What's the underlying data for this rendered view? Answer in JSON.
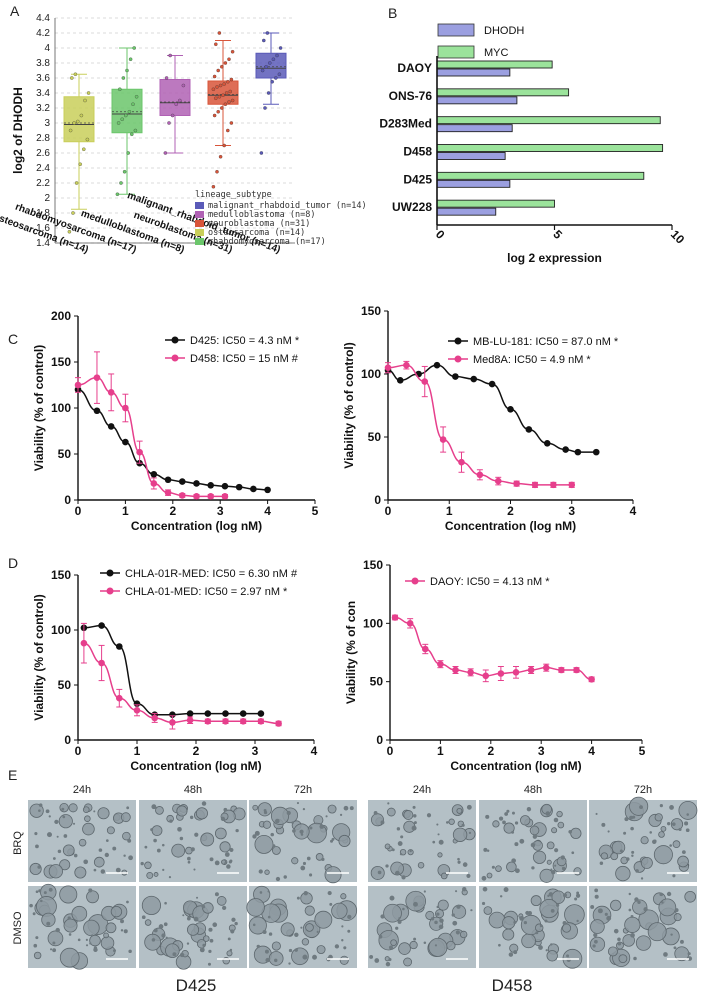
{
  "panels": {
    "A": "A",
    "B": "B",
    "C": "C",
    "D": "D",
    "E": "E"
  },
  "chart_data": [
    {
      "id": "A",
      "type": "box",
      "ylabel": "log2 of DHODH",
      "ylim": [
        1.4,
        4.4
      ],
      "yticks": [
        "1.4",
        "1.6",
        "1.8",
        "2",
        "2.2",
        "2.4",
        "2.6",
        "2.8",
        "3",
        "3.2",
        "3.4",
        "3.6",
        "3.8",
        "4",
        "4.2",
        "4.4"
      ],
      "grid": true,
      "legend_title": "lineage_subtype",
      "legend_position": "bottom-right",
      "categories": [
        "osteosarcoma (n=14)",
        "rhabdomyosarcoma (n=17)",
        "medulloblastoma (n=8)",
        "neuroblastoma (n=31)",
        "malignant_rhabdoid_tumor (n=14)"
      ],
      "boxes": [
        {
          "name": "osteosarcoma (n=14)",
          "color": "#c9cf5a",
          "q1": 2.75,
          "median": 2.98,
          "q3": 3.35,
          "mean": 3.0,
          "low": 1.85,
          "high": 3.65,
          "points": [
            1.55,
            1.8,
            2.2,
            2.45,
            2.65,
            2.78,
            2.9,
            3.0,
            3.02,
            3.1,
            3.3,
            3.4,
            3.6,
            3.65
          ]
        },
        {
          "name": "rhabdomyosarcoma (n=17)",
          "color": "#6bc66b",
          "q1": 2.87,
          "median": 3.12,
          "q3": 3.45,
          "mean": 3.15,
          "low": 2.05,
          "high": 4.0,
          "points": [
            2.05,
            2.2,
            2.35,
            2.6,
            2.85,
            2.9,
            3.0,
            3.05,
            3.1,
            3.15,
            3.25,
            3.35,
            3.45,
            3.6,
            3.7,
            3.85,
            4.0
          ]
        },
        {
          "name": "medulloblastoma (n=8)",
          "color": "#b061b4",
          "q1": 3.1,
          "median": 3.27,
          "q3": 3.58,
          "mean": 3.28,
          "low": 2.6,
          "high": 3.9,
          "points": [
            2.6,
            3.0,
            3.1,
            3.25,
            3.3,
            3.5,
            3.6,
            3.9
          ]
        },
        {
          "name": "neuroblastoma (n=31)",
          "color": "#d8553a",
          "q1": 3.25,
          "median": 3.37,
          "q3": 3.56,
          "mean": 3.38,
          "low": 2.7,
          "high": 4.1,
          "points": [
            2.15,
            2.35,
            2.55,
            2.7,
            2.9,
            3.0,
            3.1,
            3.15,
            3.2,
            3.25,
            3.28,
            3.3,
            3.33,
            3.35,
            3.37,
            3.4,
            3.42,
            3.45,
            3.48,
            3.5,
            3.52,
            3.55,
            3.58,
            3.62,
            3.7,
            3.75,
            3.8,
            3.85,
            3.95,
            4.05,
            4.2
          ]
        },
        {
          "name": "malignant_rhabdoid_tumor (n=14)",
          "color": "#5a5ab8",
          "q1": 3.6,
          "median": 3.73,
          "q3": 3.93,
          "mean": 3.75,
          "low": 3.25,
          "high": 4.2,
          "points": [
            2.6,
            3.2,
            3.4,
            3.55,
            3.6,
            3.65,
            3.7,
            3.75,
            3.8,
            3.85,
            3.9,
            4.0,
            4.1,
            4.2
          ]
        }
      ],
      "legend": [
        {
          "label": "malignant_rhabdoid_tumor (n=14)",
          "color": "#5a5ab8"
        },
        {
          "label": "medulloblastoma (n=8)",
          "color": "#b061b4"
        },
        {
          "label": "neuroblastoma (n=31)",
          "color": "#d8553a"
        },
        {
          "label": "osteosarcoma (n=14)",
          "color": "#c9cf5a"
        },
        {
          "label": "rhabdomyosarcoma (n=17)",
          "color": "#6bc66b"
        }
      ]
    },
    {
      "id": "B",
      "type": "bar",
      "orientation": "horizontal",
      "categories": [
        "DAOY",
        "ONS-76",
        "D283Med",
        "D458",
        "D425",
        "UW228"
      ],
      "xlabel": "log 2 expression",
      "xlim": [
        0,
        10
      ],
      "xticks": [
        "0",
        "5",
        "10"
      ],
      "series": [
        {
          "name": "DHODH",
          "color": "#9b9fe0",
          "values": [
            3.1,
            3.4,
            3.2,
            2.9,
            3.1,
            2.5
          ]
        },
        {
          "name": "MYC",
          "color": "#9be39b",
          "values": [
            4.9,
            5.6,
            9.5,
            9.6,
            8.8,
            5.0
          ]
        }
      ]
    },
    {
      "id": "C1",
      "type": "scatter",
      "ylabel": "Viability (% of control)",
      "xlabel": "Concentration (log nM)",
      "xlim": [
        0,
        5
      ],
      "ylim": [
        0,
        200
      ],
      "xticks": [
        "0",
        "1",
        "2",
        "3",
        "4",
        "5"
      ],
      "yticks": [
        "0",
        "50",
        "100",
        "150",
        "200"
      ],
      "series": [
        {
          "name": "D425: IC50 = 4.3 nM *",
          "color": "#111111",
          "x": [
            0.0,
            0.4,
            0.7,
            1.0,
            1.3,
            1.6,
            1.9,
            2.2,
            2.5,
            2.8,
            3.1,
            3.4,
            3.7,
            4.0
          ],
          "y": [
            120,
            97,
            80,
            63,
            40,
            28,
            22,
            20,
            18,
            16,
            15,
            14,
            12,
            11
          ]
        },
        {
          "name": "D458: IC50 = 15 nM #",
          "color": "#e63f8c",
          "x": [
            0.0,
            0.4,
            0.7,
            1.0,
            1.3,
            1.6,
            1.9,
            2.2,
            2.5,
            2.8,
            3.1
          ],
          "y": [
            125,
            133,
            117,
            100,
            52,
            18,
            8,
            5,
            4,
            4,
            4
          ],
          "err": [
            8,
            28,
            20,
            15,
            12,
            6,
            3,
            2,
            2,
            2,
            2
          ]
        }
      ]
    },
    {
      "id": "C2",
      "type": "scatter",
      "ylabel": "Viability (% of control)",
      "xlabel": "Concentration (log nM)",
      "xlim": [
        0,
        4
      ],
      "ylim": [
        0,
        150
      ],
      "xticks": [
        "0",
        "1",
        "2",
        "3",
        "4"
      ],
      "yticks": [
        "0",
        "50",
        "100",
        "150"
      ],
      "series": [
        {
          "name": "MB-LU-181: IC50 = 87.0 nM *",
          "color": "#111111",
          "x": [
            0.0,
            0.2,
            0.5,
            0.8,
            1.1,
            1.4,
            1.7,
            2.0,
            2.3,
            2.6,
            2.9,
            3.1,
            3.4
          ],
          "y": [
            103,
            95,
            100,
            107,
            98,
            96,
            92,
            72,
            56,
            45,
            40,
            38,
            38
          ]
        },
        {
          "name": "Med8A: IC50 = 4.9 nM *",
          "color": "#e63f8c",
          "x": [
            0.0,
            0.3,
            0.6,
            0.9,
            1.2,
            1.5,
            1.8,
            2.1,
            2.4,
            2.7,
            3.0
          ],
          "y": [
            105,
            107,
            94,
            48,
            30,
            20,
            15,
            13,
            12,
            12,
            12
          ],
          "err": [
            4,
            3,
            12,
            10,
            8,
            4,
            3,
            2,
            2,
            2,
            2
          ]
        }
      ]
    },
    {
      "id": "D1",
      "type": "scatter",
      "ylabel": "Viability (% of control)",
      "xlabel": "Concentration (log nM)",
      "xlim": [
        0,
        4
      ],
      "ylim": [
        0,
        150
      ],
      "xticks": [
        "0",
        "1",
        "2",
        "3",
        "4"
      ],
      "yticks": [
        "0",
        "50",
        "100",
        "150"
      ],
      "series": [
        {
          "name": "CHLA-01R-MED: IC50 = 6.30 nM #",
          "color": "#111111",
          "x": [
            0.1,
            0.4,
            0.7,
            1.0,
            1.3,
            1.6,
            1.9,
            2.2,
            2.5,
            2.8,
            3.1
          ],
          "y": [
            102,
            104,
            85,
            33,
            23,
            23,
            24,
            24,
            24,
            24,
            24
          ]
        },
        {
          "name": "CHLA-01-MED: IC50 = 2.97 nM *",
          "color": "#e63f8c",
          "x": [
            0.1,
            0.4,
            0.7,
            1.0,
            1.3,
            1.6,
            1.9,
            2.2,
            2.5,
            2.8,
            3.1,
            3.4
          ],
          "y": [
            88,
            70,
            38,
            27,
            20,
            16,
            18,
            17,
            17,
            17,
            17,
            15
          ],
          "err": [
            18,
            16,
            8,
            5,
            4,
            6,
            3,
            2,
            2,
            2,
            2,
            2
          ]
        }
      ]
    },
    {
      "id": "D2",
      "type": "scatter",
      "ylabel": "Viability (% of con",
      "xlabel": "Concentration (log nM)",
      "xlim": [
        0,
        5
      ],
      "ylim": [
        0,
        150
      ],
      "xticks": [
        "0",
        "1",
        "2",
        "3",
        "4",
        "5"
      ],
      "yticks": [
        "0",
        "50",
        "100",
        "150"
      ],
      "series": [
        {
          "name": "DAOY: IC50 = 4.13 nM *",
          "color": "#e63f8c",
          "x": [
            0.1,
            0.4,
            0.7,
            1.0,
            1.3,
            1.6,
            1.9,
            2.2,
            2.5,
            2.8,
            3.1,
            3.4,
            3.7,
            4.0
          ],
          "y": [
            105,
            100,
            78,
            65,
            60,
            58,
            55,
            57,
            58,
            60,
            62,
            60,
            60,
            52
          ],
          "err": [
            2,
            4,
            4,
            3,
            3,
            3,
            5,
            6,
            5,
            3,
            3,
            2,
            2,
            2
          ]
        }
      ]
    }
  ],
  "micrographs": {
    "time_labels": [
      "24h",
      "48h",
      "72h",
      "24h",
      "48h",
      "72h"
    ],
    "row_labels": [
      "BRQ",
      "DMSO"
    ],
    "cell_lines": [
      "D425",
      "D458"
    ]
  }
}
